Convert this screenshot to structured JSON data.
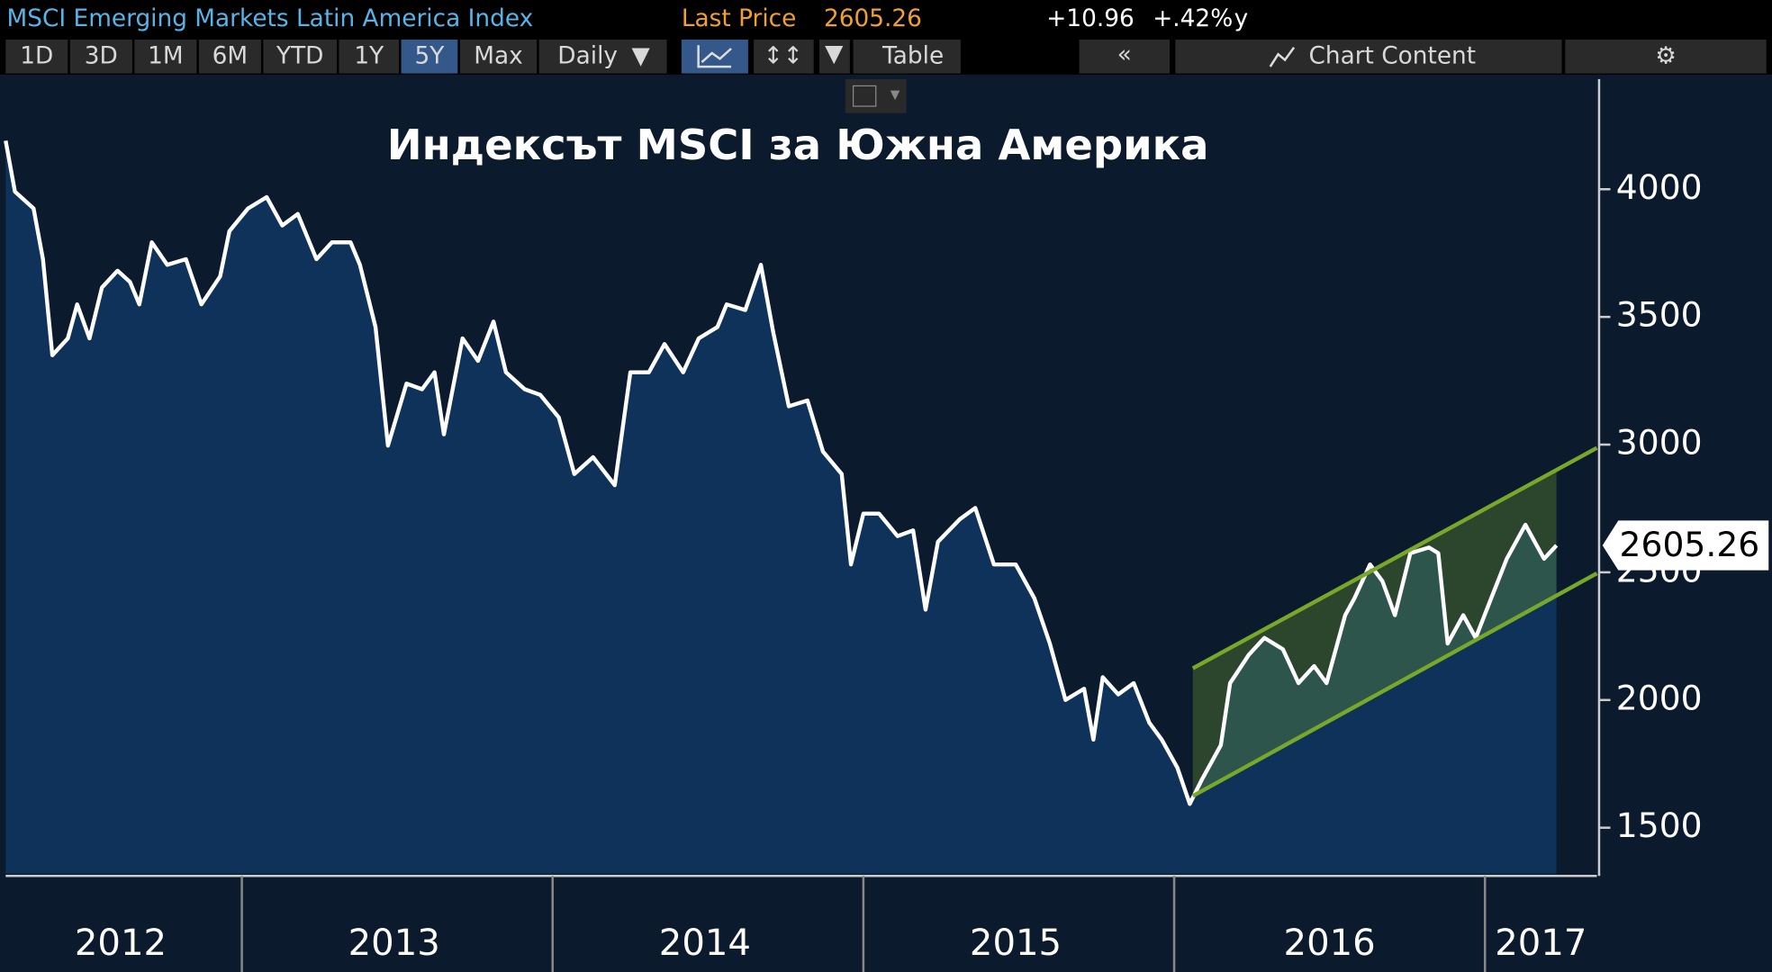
{
  "header": {
    "security": "MSCI Emerging Markets Latin America Index",
    "last_price_label": "Last Price",
    "change": "+10.96",
    "change_pct": "+.42%",
    "period_marker": "y"
  },
  "toolbar": {
    "periods": [
      "1D",
      "3D",
      "1M",
      "6M",
      "YTD",
      "1Y",
      "5Y",
      "Max"
    ],
    "frequency": "Daily",
    "table": "Table",
    "chart_content": "Chart Content"
  },
  "chart_data": {
    "type": "area",
    "title": "Индексът MSCI за Южна Америка",
    "last_price": 2605.26,
    "x": [
      2012.24,
      2012.27,
      2012.33,
      2012.36,
      2012.39,
      2012.44,
      2012.47,
      2012.51,
      2012.55,
      2012.6,
      2012.64,
      2012.67,
      2012.71,
      2012.76,
      2012.82,
      2012.87,
      2012.93,
      2012.96,
      2013.02,
      2013.08,
      2013.13,
      2013.18,
      2013.24,
      2013.29,
      2013.35,
      2013.38,
      2013.43,
      2013.47,
      2013.53,
      2013.58,
      2013.62,
      2013.65,
      2013.71,
      2013.76,
      2013.81,
      2013.85,
      2013.91,
      2013.96,
      2014.02,
      2014.07,
      2014.13,
      2014.2,
      2014.25,
      2014.31,
      2014.36,
      2014.42,
      2014.47,
      2014.53,
      2014.56,
      2014.62,
      2014.67,
      2014.71,
      2014.76,
      2014.82,
      2014.87,
      2014.93,
      2014.96,
      2015.0,
      2015.05,
      2015.11,
      2015.16,
      2015.2,
      2015.24,
      2015.31,
      2015.36,
      2015.42,
      2015.49,
      2015.55,
      2015.6,
      2015.65,
      2015.71,
      2015.74,
      2015.77,
      2015.82,
      2015.87,
      2015.92,
      2015.96,
      2016.01,
      2016.05,
      2016.09,
      2016.15,
      2016.18,
      2016.24,
      2016.29,
      2016.35,
      2016.4,
      2016.45,
      2016.49,
      2016.55,
      2016.58,
      2016.63,
      2016.67,
      2016.71,
      2016.76,
      2016.82,
      2016.85,
      2016.88,
      2016.93,
      2016.97,
      2017.02,
      2017.07,
      2017.13,
      2017.16,
      2017.19,
      2017.23
    ],
    "series": [
      {
        "name": "MSCI Emerging Markets Latin America Index",
        "color": "#ffffff",
        "fill": "#0e3259",
        "values": [
          4190,
          3991,
          3925,
          3726,
          3350,
          3416,
          3549,
          3416,
          3615,
          3681,
          3637,
          3549,
          3792,
          3704,
          3726,
          3549,
          3659,
          3836,
          3925,
          3969,
          3858,
          3903,
          3726,
          3792,
          3792,
          3704,
          3460,
          2996,
          3239,
          3217,
          3283,
          3040,
          3416,
          3328,
          3482,
          3283,
          3217,
          3195,
          3106,
          2885,
          2951,
          2841,
          3283,
          3283,
          3394,
          3283,
          3416,
          3460,
          3549,
          3527,
          3704,
          3438,
          3150,
          3173,
          2973,
          2885,
          2531,
          2730,
          2730,
          2642,
          2664,
          2354,
          2620,
          2708,
          2752,
          2531,
          2531,
          2398,
          2221,
          2000,
          2044,
          1845,
          2089,
          2022,
          2066,
          1911,
          1845,
          1735,
          1593,
          1690,
          1823,
          2066,
          2177,
          2243,
          2199,
          2066,
          2133,
          2066,
          2332,
          2398,
          2531,
          2465,
          2332,
          2575,
          2597,
          2575,
          2221,
          2332,
          2243,
          2398,
          2553,
          2686,
          2620,
          2553,
          2605.26
        ]
      }
    ],
    "channel": {
      "x": [
        2016.06,
        2017.36
      ],
      "upper": [
        2124,
        2987
      ],
      "lower": [
        1624,
        2496
      ],
      "color": "#78a82a"
    },
    "xlim": [
      2012.24,
      2017.36
    ],
    "ylim": [
      1320,
      4440
    ],
    "yticks": [
      1500,
      2000,
      2500,
      3000,
      3500,
      4000
    ],
    "xticks": [
      {
        "value": 2012.61,
        "label": "2012"
      },
      {
        "value": 2013.49,
        "label": "2013"
      },
      {
        "value": 2014.49,
        "label": "2014"
      },
      {
        "value": 2015.49,
        "label": "2015"
      },
      {
        "value": 2016.5,
        "label": "2016"
      },
      {
        "value": 2017.18,
        "label": "2017"
      }
    ],
    "x_boundaries": [
      2013,
      2014,
      2015,
      2016,
      2017
    ],
    "background": "#0c1a2e"
  }
}
